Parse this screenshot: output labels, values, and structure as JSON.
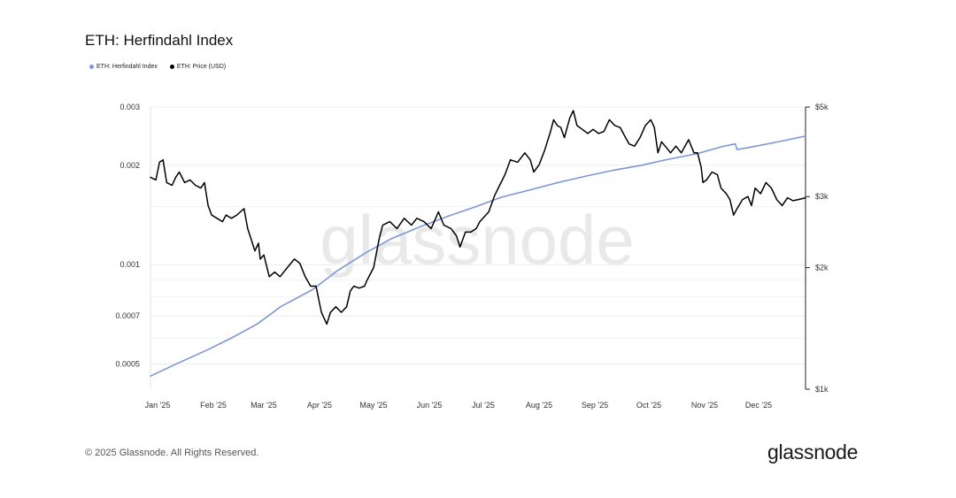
{
  "chart_data": {
    "type": "line",
    "title": "ETH: Herfindahl Index",
    "watermark": "glassnode",
    "legend_placement": "top-left",
    "grid": true,
    "x": {
      "start": "2025-01-01",
      "end": "2025-12-31",
      "tick_labels": [
        "Jan '25",
        "Feb '25",
        "Mar '25",
        "Apr '25",
        "May '25",
        "Jun '25",
        "Jul '25",
        "Aug '25",
        "Sep '25",
        "Oct '25",
        "Nov '25",
        "Dec '25"
      ],
      "tick_dates": [
        "2025-01-01",
        "2025-02-01",
        "2025-03-01",
        "2025-04-01",
        "2025-05-01",
        "2025-06-01",
        "2025-07-01",
        "2025-08-01",
        "2025-09-01",
        "2025-10-01",
        "2025-11-01",
        "2025-12-01"
      ]
    },
    "y_left": {
      "scale": "log",
      "range": [
        0.00042,
        0.003
      ],
      "ticks": [
        0.003,
        0.002,
        0.001,
        0.0007,
        0.0005
      ],
      "tick_labels": [
        "0.003",
        "0.002",
        "0.001",
        "0.0007",
        "0.0005"
      ]
    },
    "y_right": {
      "scale": "log",
      "range": [
        1000,
        5000
      ],
      "ticks": [
        5000,
        3000,
        2000,
        1000
      ],
      "tick_labels": [
        "$5k",
        "$3k",
        "$2k",
        "$1k"
      ]
    },
    "series": [
      {
        "name": "ETH: Herfindahl Index",
        "color": "#7b97d6",
        "axis": "left",
        "points": [
          [
            "2025-01-01",
            0.00046
          ],
          [
            "2025-01-15",
            0.0005
          ],
          [
            "2025-02-01",
            0.00055
          ],
          [
            "2025-02-15",
            0.0006
          ],
          [
            "2025-03-01",
            0.00066
          ],
          [
            "2025-03-15",
            0.00075
          ],
          [
            "2025-04-01",
            0.00084
          ],
          [
            "2025-04-15",
            0.00096
          ],
          [
            "2025-05-01",
            0.00109
          ],
          [
            "2025-05-15",
            0.0012
          ],
          [
            "2025-06-01",
            0.00131
          ],
          [
            "2025-06-15",
            0.0014
          ],
          [
            "2025-07-01",
            0.0015
          ],
          [
            "2025-07-15",
            0.0016
          ],
          [
            "2025-08-01",
            0.00169
          ],
          [
            "2025-08-15",
            0.00177
          ],
          [
            "2025-09-01",
            0.00186
          ],
          [
            "2025-09-15",
            0.00193
          ],
          [
            "2025-10-01",
            0.002
          ],
          [
            "2025-10-15",
            0.00208
          ],
          [
            "2025-11-01",
            0.00217
          ],
          [
            "2025-11-15",
            0.00228
          ],
          [
            "2025-11-22",
            0.00232
          ],
          [
            "2025-11-23",
            0.00223
          ],
          [
            "2025-12-01",
            0.00227
          ],
          [
            "2025-12-15",
            0.00235
          ],
          [
            "2025-12-31",
            0.00245
          ]
        ]
      },
      {
        "name": "ETH: Price (USD)",
        "color": "#000000",
        "axis": "right",
        "points": [
          [
            "2025-01-01",
            3350
          ],
          [
            "2025-01-04",
            3300
          ],
          [
            "2025-01-06",
            3650
          ],
          [
            "2025-01-08",
            3700
          ],
          [
            "2025-01-10",
            3250
          ],
          [
            "2025-01-13",
            3200
          ],
          [
            "2025-01-15",
            3350
          ],
          [
            "2025-01-17",
            3450
          ],
          [
            "2025-01-20",
            3250
          ],
          [
            "2025-01-23",
            3300
          ],
          [
            "2025-01-26",
            3200
          ],
          [
            "2025-01-29",
            3150
          ],
          [
            "2025-01-31",
            3250
          ],
          [
            "2025-02-02",
            2850
          ],
          [
            "2025-02-04",
            2700
          ],
          [
            "2025-02-07",
            2650
          ],
          [
            "2025-02-10",
            2600
          ],
          [
            "2025-02-12",
            2700
          ],
          [
            "2025-02-15",
            2650
          ],
          [
            "2025-02-18",
            2700
          ],
          [
            "2025-02-20",
            2750
          ],
          [
            "2025-02-22",
            2800
          ],
          [
            "2025-02-24",
            2500
          ],
          [
            "2025-02-26",
            2350
          ],
          [
            "2025-02-28",
            2200
          ],
          [
            "2025-03-02",
            2300
          ],
          [
            "2025-03-03",
            2100
          ],
          [
            "2025-03-05",
            2150
          ],
          [
            "2025-03-08",
            1900
          ],
          [
            "2025-03-11",
            1950
          ],
          [
            "2025-03-14",
            1900
          ],
          [
            "2025-03-18",
            2000
          ],
          [
            "2025-03-22",
            2100
          ],
          [
            "2025-03-25",
            2050
          ],
          [
            "2025-03-28",
            1900
          ],
          [
            "2025-03-31",
            1800
          ],
          [
            "2025-04-03",
            1800
          ],
          [
            "2025-04-06",
            1550
          ],
          [
            "2025-04-09",
            1450
          ],
          [
            "2025-04-11",
            1550
          ],
          [
            "2025-04-14",
            1600
          ],
          [
            "2025-04-17",
            1550
          ],
          [
            "2025-04-20",
            1600
          ],
          [
            "2025-04-22",
            1750
          ],
          [
            "2025-04-24",
            1800
          ],
          [
            "2025-04-27",
            1780
          ],
          [
            "2025-04-30",
            1800
          ],
          [
            "2025-05-01",
            1850
          ],
          [
            "2025-05-05",
            2000
          ],
          [
            "2025-05-08",
            2350
          ],
          [
            "2025-05-10",
            2550
          ],
          [
            "2025-05-14",
            2600
          ],
          [
            "2025-05-18",
            2500
          ],
          [
            "2025-05-22",
            2650
          ],
          [
            "2025-05-26",
            2550
          ],
          [
            "2025-05-29",
            2650
          ],
          [
            "2025-06-02",
            2600
          ],
          [
            "2025-06-06",
            2500
          ],
          [
            "2025-06-10",
            2750
          ],
          [
            "2025-06-13",
            2550
          ],
          [
            "2025-06-17",
            2500
          ],
          [
            "2025-06-20",
            2400
          ],
          [
            "2025-06-22",
            2250
          ],
          [
            "2025-06-25",
            2450
          ],
          [
            "2025-06-28",
            2450
          ],
          [
            "2025-07-01",
            2500
          ],
          [
            "2025-07-03",
            2600
          ],
          [
            "2025-07-08",
            2750
          ],
          [
            "2025-07-11",
            3000
          ],
          [
            "2025-07-14",
            3200
          ],
          [
            "2025-07-17",
            3400
          ],
          [
            "2025-07-20",
            3700
          ],
          [
            "2025-07-24",
            3650
          ],
          [
            "2025-07-28",
            3850
          ],
          [
            "2025-07-31",
            3700
          ],
          [
            "2025-08-02",
            3450
          ],
          [
            "2025-08-05",
            3600
          ],
          [
            "2025-08-08",
            3900
          ],
          [
            "2025-08-11",
            4300
          ],
          [
            "2025-08-13",
            4650
          ],
          [
            "2025-08-15",
            4500
          ],
          [
            "2025-08-17",
            4450
          ],
          [
            "2025-08-19",
            4200
          ],
          [
            "2025-08-22",
            4700
          ],
          [
            "2025-08-24",
            4900
          ],
          [
            "2025-08-26",
            4500
          ],
          [
            "2025-08-29",
            4400
          ],
          [
            "2025-09-01",
            4300
          ],
          [
            "2025-09-04",
            4400
          ],
          [
            "2025-09-07",
            4300
          ],
          [
            "2025-09-10",
            4350
          ],
          [
            "2025-09-13",
            4650
          ],
          [
            "2025-09-16",
            4500
          ],
          [
            "2025-09-19",
            4450
          ],
          [
            "2025-09-22",
            4200
          ],
          [
            "2025-09-24",
            4050
          ],
          [
            "2025-09-27",
            4000
          ],
          [
            "2025-09-30",
            4200
          ],
          [
            "2025-10-03",
            4500
          ],
          [
            "2025-10-06",
            4650
          ],
          [
            "2025-10-08",
            4450
          ],
          [
            "2025-10-10",
            3850
          ],
          [
            "2025-10-12",
            4100
          ],
          [
            "2025-10-15",
            3950
          ],
          [
            "2025-10-17",
            3850
          ],
          [
            "2025-10-20",
            4000
          ],
          [
            "2025-10-23",
            3850
          ],
          [
            "2025-10-27",
            4150
          ],
          [
            "2025-10-30",
            3850
          ],
          [
            "2025-11-01",
            3850
          ],
          [
            "2025-11-03",
            3550
          ],
          [
            "2025-11-04",
            3250
          ],
          [
            "2025-11-06",
            3300
          ],
          [
            "2025-11-09",
            3450
          ],
          [
            "2025-11-12",
            3400
          ],
          [
            "2025-11-14",
            3150
          ],
          [
            "2025-11-17",
            3050
          ],
          [
            "2025-11-19",
            2950
          ],
          [
            "2025-11-21",
            2700
          ],
          [
            "2025-11-23",
            2800
          ],
          [
            "2025-11-26",
            2950
          ],
          [
            "2025-11-29",
            3000
          ],
          [
            "2025-12-01",
            2850
          ],
          [
            "2025-12-03",
            3150
          ],
          [
            "2025-12-06",
            3050
          ],
          [
            "2025-12-09",
            3250
          ],
          [
            "2025-12-12",
            3150
          ],
          [
            "2025-12-15",
            2950
          ],
          [
            "2025-12-18",
            2850
          ],
          [
            "2025-12-21",
            2980
          ],
          [
            "2025-12-24",
            2930
          ],
          [
            "2025-12-27",
            2950
          ],
          [
            "2025-12-31",
            2980
          ]
        ]
      }
    ]
  },
  "footer": {
    "copyright": "© 2025 Glassnode. All Rights Reserved.",
    "logo": "glassnode"
  }
}
